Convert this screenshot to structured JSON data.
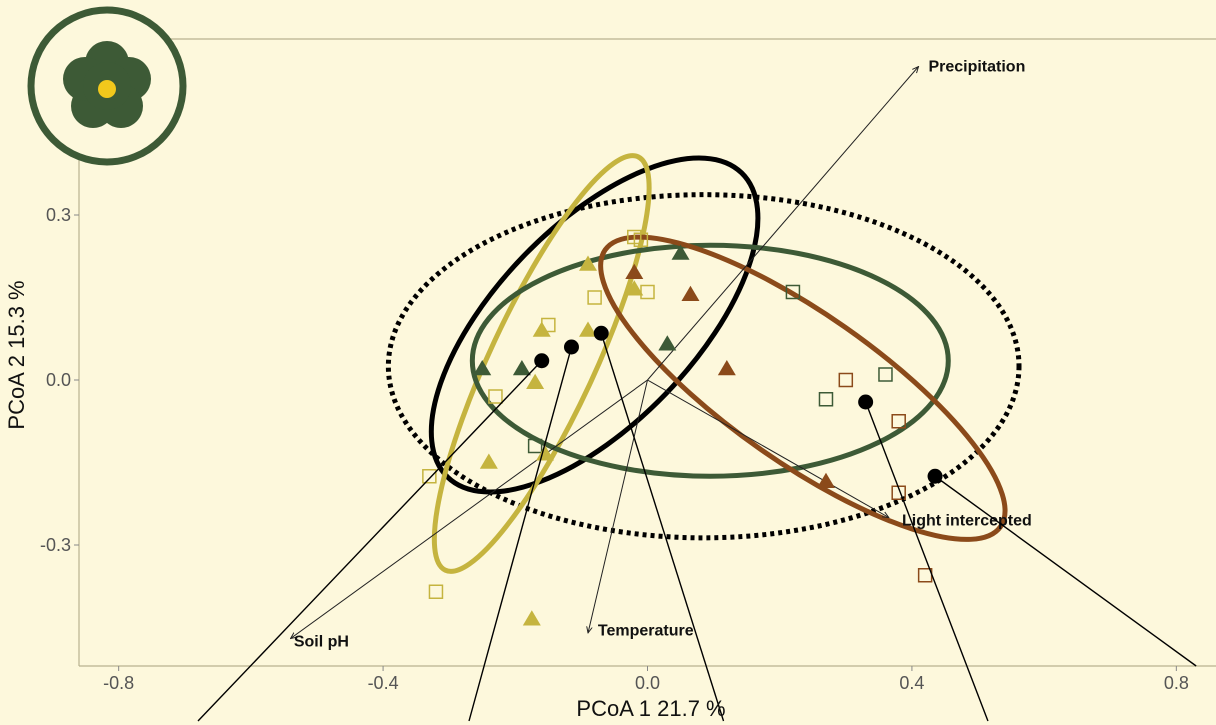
{
  "colors": {
    "background": "#fdf8dc",
    "group_black": "#000000",
    "group_olive": "#c5b43f",
    "group_green": "#3d5a36",
    "group_brown": "#8b4a1a",
    "logo_green": "#3d5a36",
    "logo_center": "#f2c81c"
  },
  "logo": {
    "icon": "flower-icon"
  },
  "chart_data": {
    "type": "scatter",
    "xlabel": "PCoA 1 21.7 %",
    "ylabel": "PCoA 2 15.3 %",
    "xlim": [
      -0.86,
      0.86
    ],
    "ylim": [
      -0.52,
      0.62
    ],
    "x_ticks": [
      -0.8,
      -0.4,
      0.0,
      0.4,
      0.8
    ],
    "x_tick_labels": [
      "-0.8",
      "-0.4",
      "0.0",
      "0.4",
      "0.8"
    ],
    "y_ticks": [
      -0.3,
      0.0,
      0.3
    ],
    "y_tick_labels": [
      "-0.3",
      "0.0",
      "0.3"
    ],
    "grid": false,
    "points": [
      {
        "x": -0.02,
        "y": 0.26,
        "shape": "square",
        "color": "#c5b43f"
      },
      {
        "x": -0.01,
        "y": 0.255,
        "shape": "square",
        "color": "#c5b43f"
      },
      {
        "x": -0.08,
        "y": 0.15,
        "shape": "square",
        "color": "#c5b43f"
      },
      {
        "x": 0.0,
        "y": 0.16,
        "shape": "square",
        "color": "#c5b43f"
      },
      {
        "x": -0.15,
        "y": 0.1,
        "shape": "square",
        "color": "#c5b43f"
      },
      {
        "x": -0.23,
        "y": -0.03,
        "shape": "square",
        "color": "#c5b43f"
      },
      {
        "x": -0.33,
        "y": -0.175,
        "shape": "square",
        "color": "#c5b43f"
      },
      {
        "x": -0.32,
        "y": -0.385,
        "shape": "square",
        "color": "#c5b43f"
      },
      {
        "x": 0.22,
        "y": 0.16,
        "shape": "square",
        "color": "#3d5a36"
      },
      {
        "x": 0.36,
        "y": 0.01,
        "shape": "square",
        "color": "#3d5a36"
      },
      {
        "x": 0.27,
        "y": -0.035,
        "shape": "square",
        "color": "#3d5a36"
      },
      {
        "x": -0.17,
        "y": -0.12,
        "shape": "square",
        "color": "#3d5a36"
      },
      {
        "x": 0.3,
        "y": 0.0,
        "shape": "square",
        "color": "#8b4a1a"
      },
      {
        "x": 0.38,
        "y": -0.075,
        "shape": "square",
        "color": "#8b4a1a"
      },
      {
        "x": 0.38,
        "y": -0.205,
        "shape": "square",
        "color": "#8b4a1a"
      },
      {
        "x": 0.42,
        "y": -0.355,
        "shape": "square",
        "color": "#8b4a1a"
      },
      {
        "x": -0.09,
        "y": 0.21,
        "shape": "triangle",
        "color": "#c5b43f"
      },
      {
        "x": -0.02,
        "y": 0.165,
        "shape": "triangle",
        "color": "#c5b43f"
      },
      {
        "x": -0.16,
        "y": 0.09,
        "shape": "triangle",
        "color": "#c5b43f"
      },
      {
        "x": -0.09,
        "y": 0.09,
        "shape": "triangle",
        "color": "#c5b43f"
      },
      {
        "x": -0.17,
        "y": -0.005,
        "shape": "triangle",
        "color": "#c5b43f"
      },
      {
        "x": -0.24,
        "y": -0.15,
        "shape": "triangle",
        "color": "#c5b43f"
      },
      {
        "x": -0.155,
        "y": -0.135,
        "shape": "triangle",
        "color": "#c5b43f"
      },
      {
        "x": -0.175,
        "y": -0.435,
        "shape": "triangle",
        "color": "#c5b43f"
      },
      {
        "x": 0.05,
        "y": 0.23,
        "shape": "triangle",
        "color": "#3d5a36"
      },
      {
        "x": 0.03,
        "y": 0.065,
        "shape": "triangle",
        "color": "#3d5a36"
      },
      {
        "x": -0.25,
        "y": 0.02,
        "shape": "triangle",
        "color": "#3d5a36"
      },
      {
        "x": -0.19,
        "y": 0.02,
        "shape": "triangle",
        "color": "#3d5a36"
      },
      {
        "x": -0.02,
        "y": 0.195,
        "shape": "triangle",
        "color": "#8b4a1a"
      },
      {
        "x": 0.065,
        "y": 0.155,
        "shape": "triangle",
        "color": "#8b4a1a"
      },
      {
        "x": 0.12,
        "y": 0.02,
        "shape": "triangle",
        "color": "#8b4a1a"
      },
      {
        "x": 0.27,
        "y": -0.185,
        "shape": "triangle",
        "color": "#8b4a1a"
      }
    ],
    "centroids": [
      {
        "x": -0.16,
        "y": 0.035,
        "leader_to": [
          -0.68,
          -0.62
        ]
      },
      {
        "x": -0.115,
        "y": 0.06,
        "leader_to": [
          -0.27,
          -0.62
        ]
      },
      {
        "x": -0.07,
        "y": 0.085,
        "leader_to": [
          0.115,
          -0.62
        ]
      },
      {
        "x": 0.33,
        "y": -0.04,
        "leader_to": [
          0.515,
          -0.62
        ]
      },
      {
        "x": 0.435,
        "y": -0.175,
        "leader_to": [
          0.83,
          -0.52
        ]
      }
    ],
    "ellipses": [
      {
        "name": "",
        "cx": 0.085,
        "cy": 0.025,
        "rx": 0.477,
        "ry": 0.312,
        "angle": 0,
        "color": "#000000",
        "dashed": true
      },
      {
        "name": "",
        "cx": -0.08,
        "cy": 0.1,
        "rx": 0.32,
        "ry": 0.18,
        "angle": 46,
        "color": "#000000",
        "dashed": false
      },
      {
        "name": "",
        "cx": -0.16,
        "cy": 0.03,
        "rx": 0.345,
        "ry": 0.095,
        "angle": 65,
        "color": "#c5b43f",
        "dashed": false
      },
      {
        "name": "",
        "cx": 0.095,
        "cy": 0.035,
        "rx": 0.36,
        "ry": 0.21,
        "angle": 0,
        "color": "#3d5a36",
        "dashed": false
      },
      {
        "name": "",
        "cx": 0.235,
        "cy": -0.015,
        "rx": 0.365,
        "ry": 0.135,
        "angle": -35,
        "color": "#8b4a1a",
        "dashed": false
      }
    ],
    "vectors": [
      {
        "label": "Precipitation",
        "from": [
          0.0,
          0.0
        ],
        "to": [
          0.41,
          0.57
        ],
        "label_at": [
          0.425,
          0.57
        ],
        "anchor": "start"
      },
      {
        "label": "Soil pH",
        "from": [
          0.0,
          0.0
        ],
        "to": [
          -0.54,
          -0.47
        ],
        "label_at": [
          -0.535,
          -0.475
        ],
        "anchor": "start"
      },
      {
        "label": "Temperature",
        "from": [
          0.0,
          0.0
        ],
        "to": [
          -0.09,
          -0.46
        ],
        "label_at": [
          -0.075,
          -0.455
        ],
        "anchor": "start"
      },
      {
        "label": "Light intercepted",
        "from": [
          0.0,
          0.0
        ],
        "to": [
          0.365,
          -0.25
        ],
        "label_at": [
          0.385,
          -0.255
        ],
        "anchor": "start"
      }
    ]
  }
}
